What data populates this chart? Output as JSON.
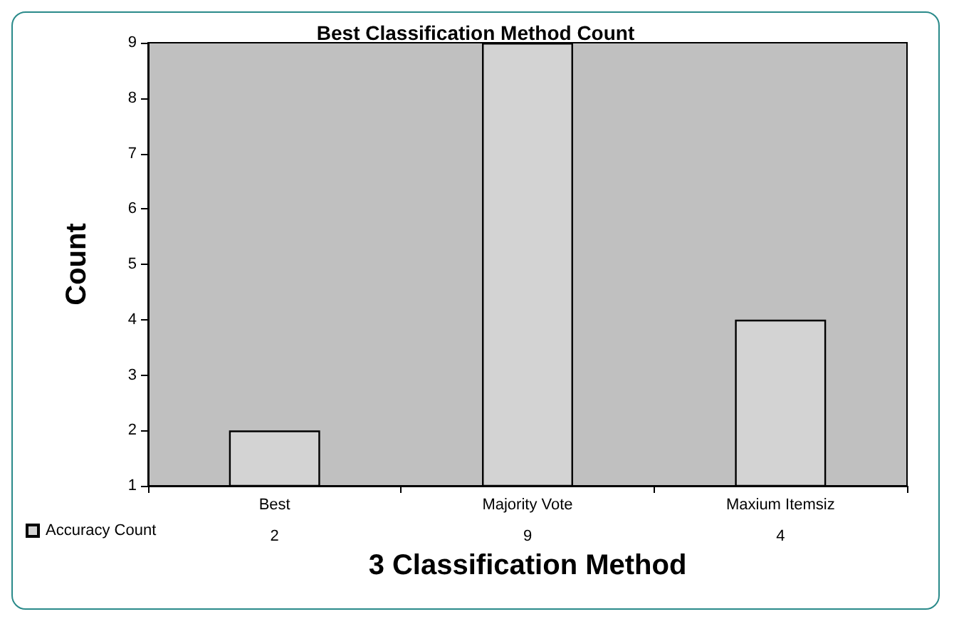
{
  "chart_data": {
    "type": "bar",
    "title": "Best Classification Method Count",
    "xlabel": "3 Classification Method",
    "ylabel": "Count",
    "categories": [
      "Best",
      "Majority Vote",
      "Maxium Itemsiz"
    ],
    "series": [
      {
        "name": "Accuracy Count",
        "color": "#d3d3d3",
        "values": [
          2,
          9,
          4
        ]
      }
    ],
    "ylim": [
      1,
      9
    ],
    "yticks": [
      1,
      2,
      3,
      4,
      5,
      6,
      7,
      8,
      9
    ],
    "grid": false,
    "legend": "bottom left",
    "data_labels": true
  }
}
